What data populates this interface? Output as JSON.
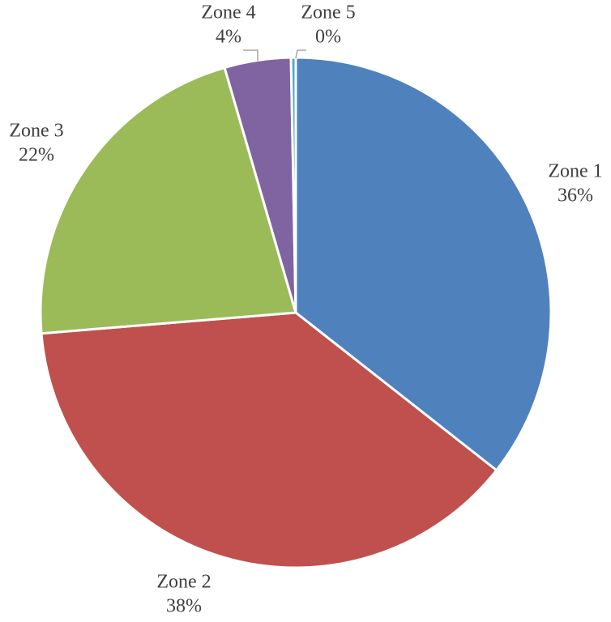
{
  "chart_data": {
    "type": "pie",
    "categories": [
      "Zone 1",
      "Zone 2",
      "Zone 3",
      "Zone 4",
      "Zone 5"
    ],
    "values": [
      35.6,
      38.1,
      21.8,
      4.2,
      0.3
    ],
    "value_labels": [
      "36%",
      "38%",
      "22%",
      "4%",
      "0%"
    ],
    "colors": [
      "#4f81bd",
      "#c0504d",
      "#9bbb59",
      "#8064a2",
      "#4bacc6"
    ]
  }
}
